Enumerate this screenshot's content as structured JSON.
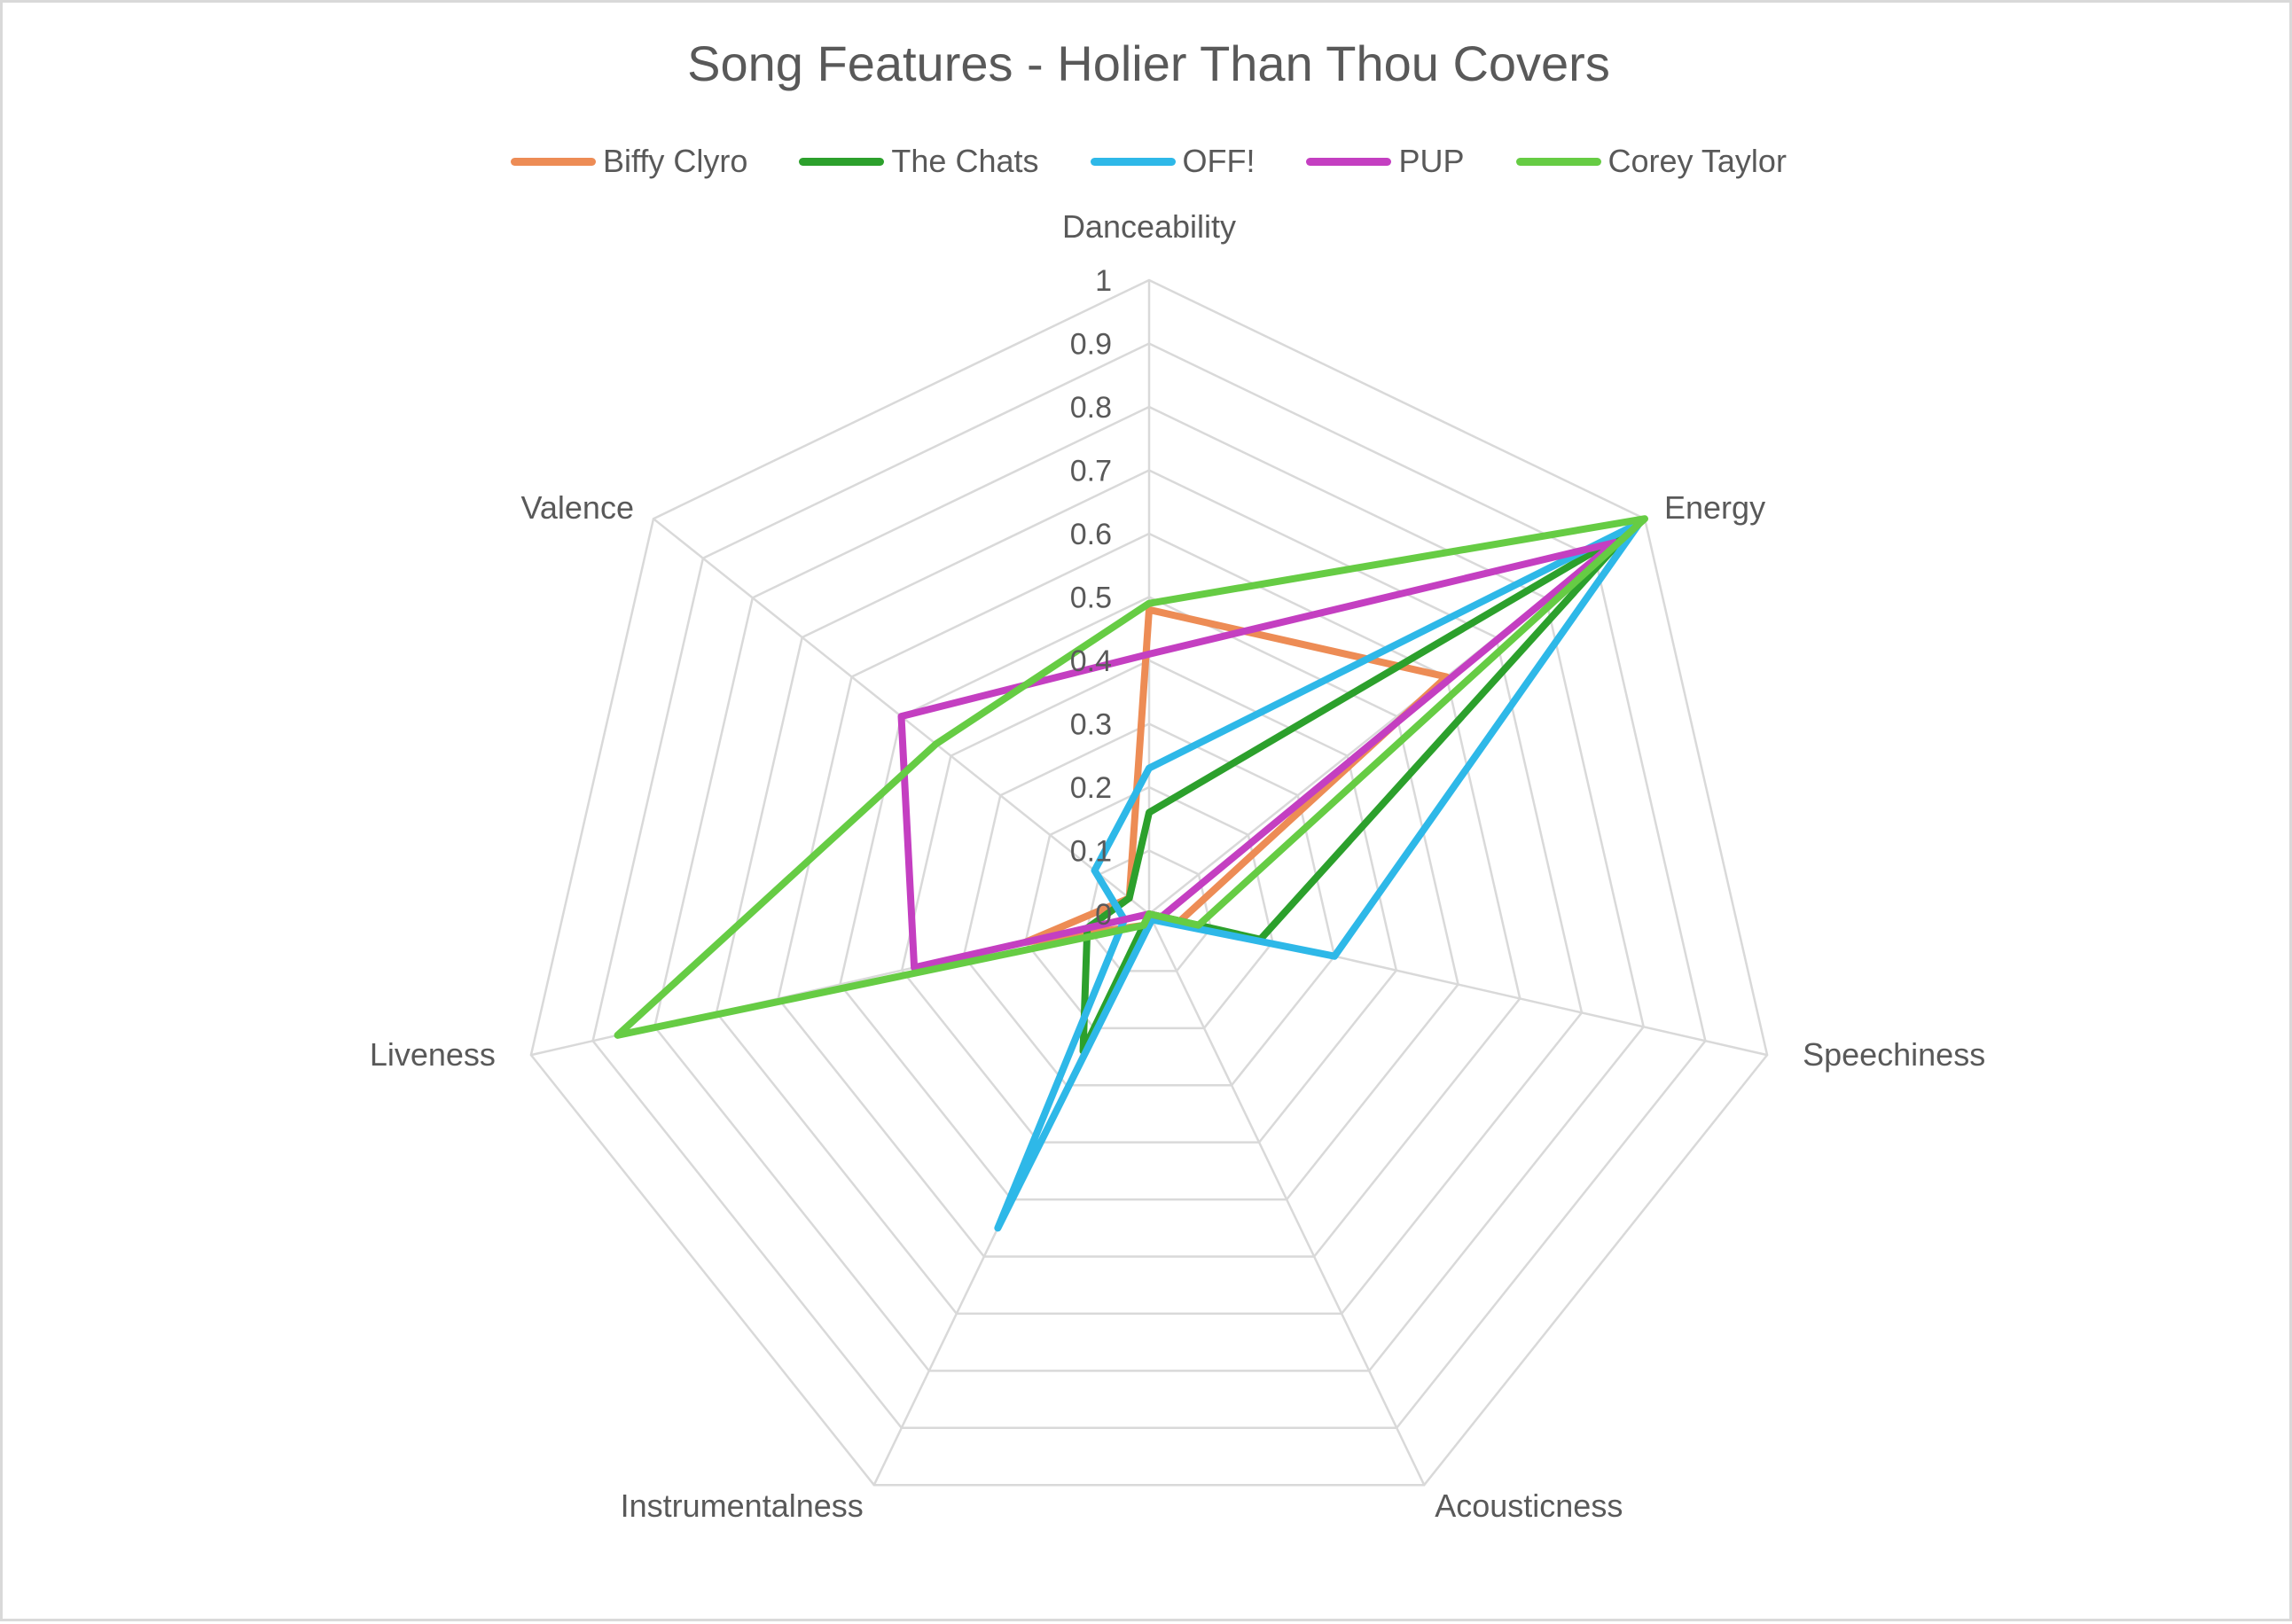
{
  "colors": {
    "grid": "#d9d9d9",
    "text": "#595959",
    "border": "#d9d9d9"
  },
  "chart_data": {
    "type": "radar",
    "title": "Song Features - Holier Than Thou Covers",
    "axes": [
      "Danceability",
      "Energy",
      "Speechiness",
      "Acousticness",
      "Instrumentalness",
      "Liveness",
      "Valence"
    ],
    "rlim": [
      0,
      1
    ],
    "ticks": [
      "0",
      "0.1",
      "0.2",
      "0.3",
      "0.4",
      "0.5",
      "0.6",
      "0.7",
      "0.8",
      "0.9",
      "1"
    ],
    "legend_position": "top",
    "grid": true,
    "series": [
      {
        "name": "Biffy Clyro",
        "color": "#ed8c55",
        "values": [
          0.48,
          0.6,
          0.05,
          0.0,
          0.02,
          0.2,
          0.04
        ]
      },
      {
        "name": "The Chats",
        "color": "#2ca02c",
        "values": [
          0.16,
          0.97,
          0.18,
          0.0,
          0.24,
          0.1,
          0.04
        ]
      },
      {
        "name": "OFF!",
        "color": "#2eb8e8",
        "values": [
          0.23,
          0.99,
          0.3,
          0.01,
          0.55,
          0.04,
          0.11
        ]
      },
      {
        "name": "PUP",
        "color": "#c43fc1",
        "values": [
          0.41,
          0.94,
          0.02,
          0.0,
          0.0,
          0.38,
          0.5
        ]
      },
      {
        "name": "Corey Taylor",
        "color": "#66cc44",
        "values": [
          0.49,
          1.0,
          0.08,
          0.0,
          0.02,
          0.86,
          0.43
        ]
      }
    ]
  }
}
